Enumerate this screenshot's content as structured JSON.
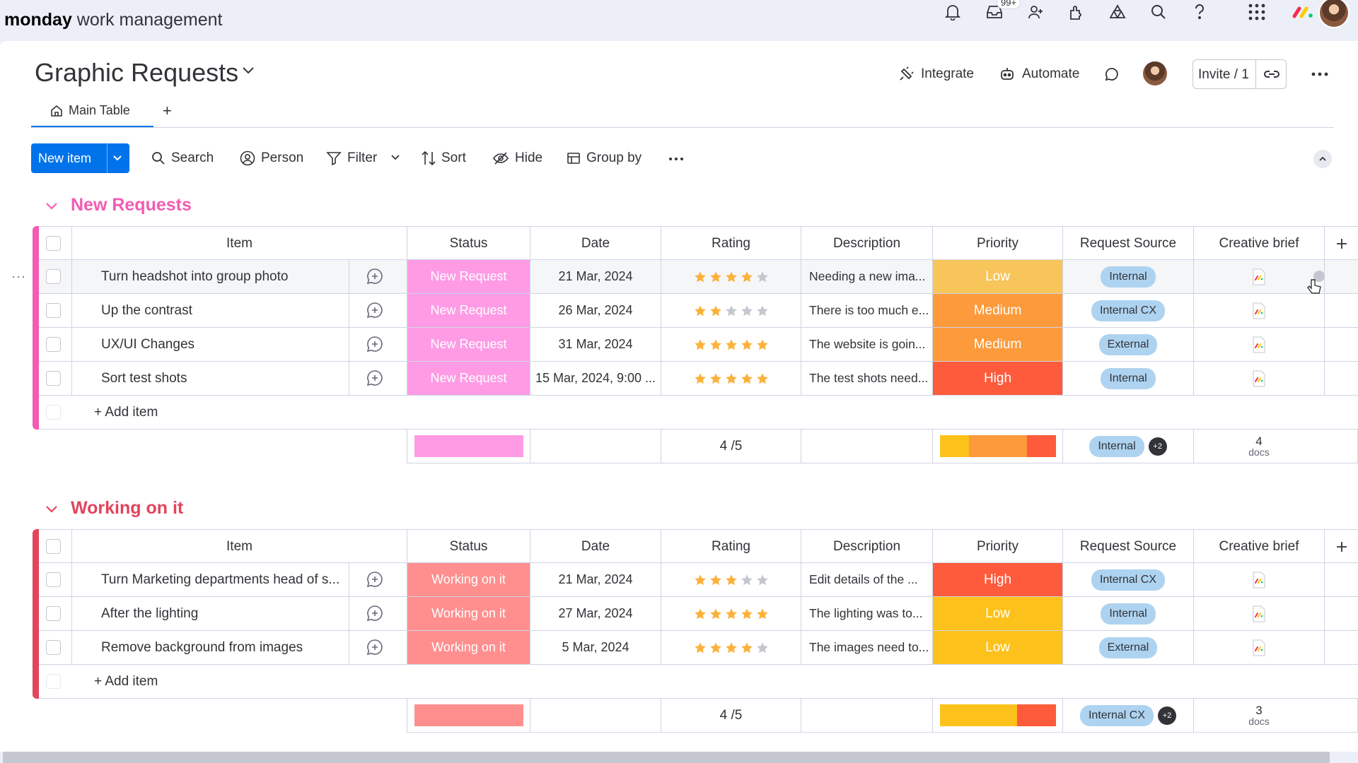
{
  "app": {
    "brand_bold": "monday",
    "brand_rest": " work management",
    "notifications_badge": "99+"
  },
  "board": {
    "title": "Graphic Requests",
    "actions": {
      "integrate": "Integrate",
      "automate": "Automate",
      "invite": "Invite / 1"
    },
    "tabs": [
      {
        "label": "Main Table"
      }
    ],
    "add_tab": "+"
  },
  "toolbar": {
    "new_item": "New item",
    "search": "Search",
    "person": "Person",
    "filter": "Filter",
    "sort": "Sort",
    "hide": "Hide",
    "group_by": "Group by"
  },
  "columns": [
    "Item",
    "Status",
    "Date",
    "Rating",
    "Description",
    "Priority",
    "Request Source",
    "Creative brief"
  ],
  "colors": {
    "new_request": "#ff9be5",
    "new_request_group": "#f25cb3",
    "working_on_it": "#ff8f8f",
    "working_group": "#e2445c",
    "priority_low_light": "#f7c55a",
    "priority_low": "#fcc21b",
    "priority_medium": "#fd9a3c",
    "priority_high": "#fd5b3c",
    "source_pill": "#aed3f0",
    "star_on": "#fcb139",
    "star_off": "#c5c7d0"
  },
  "groups": [
    {
      "title": "New Requests",
      "color": "#f25cb3",
      "rows": [
        {
          "item": "Turn headshot into group photo",
          "status": "New Request",
          "date": "21 Mar, 2024",
          "rating": 4,
          "description": "Needing a new ima...",
          "priority": "Low",
          "source": "Internal"
        },
        {
          "item": "Up the contrast",
          "status": "New Request",
          "date": "26 Mar, 2024",
          "rating": 2,
          "description": "There is too much e...",
          "priority": "Medium",
          "source": "Internal CX"
        },
        {
          "item": "UX/UI Changes",
          "status": "New Request",
          "date": "31 Mar, 2024",
          "rating": 5,
          "description": "The website is goin...",
          "priority": "Medium",
          "source": "External"
        },
        {
          "item": "Sort test shots",
          "status": "New Request",
          "date": "15 Mar, 2024, 9:00 ...",
          "rating": 5,
          "description": "The test shots need...",
          "priority": "High",
          "source": "Internal"
        }
      ],
      "add_item": "+ Add item",
      "summary": {
        "rating": "4 /5",
        "source": "Internal",
        "source_more": "+2",
        "docs_count": "4",
        "docs_label": "docs"
      }
    },
    {
      "title": "Working on it",
      "color": "#e2445c",
      "rows": [
        {
          "item": "Turn Marketing departments head of s...",
          "status": "Working on it",
          "date": "21 Mar, 2024",
          "rating": 3,
          "description": "Edit details of the ...",
          "priority": "High",
          "source": "Internal CX"
        },
        {
          "item": "After the lighting",
          "status": "Working on it",
          "date": "27 Mar, 2024",
          "rating": 5,
          "description": "The lighting was to...",
          "priority": "Low",
          "source": "Internal"
        },
        {
          "item": "Remove background from images",
          "status": "Working on it",
          "date": "5 Mar, 2024",
          "rating": 4,
          "description": "The images need to...",
          "priority": "Low",
          "source": "External"
        }
      ],
      "add_item": "+ Add item",
      "summary": {
        "rating": "4 /5",
        "source": "Internal CX",
        "source_more": "+2",
        "docs_count": "3",
        "docs_label": "docs"
      }
    }
  ],
  "icons": {
    "top": [
      "bell-icon",
      "inbox-icon",
      "invite-members-icon",
      "apps-icon",
      "ai-icon",
      "search-icon",
      "help-icon",
      "app-grid-icon",
      "monday-logo-icon",
      "user-avatar"
    ],
    "cell": [
      "update-bubble-icon",
      "star-icon",
      "doc-file-icon"
    ]
  }
}
